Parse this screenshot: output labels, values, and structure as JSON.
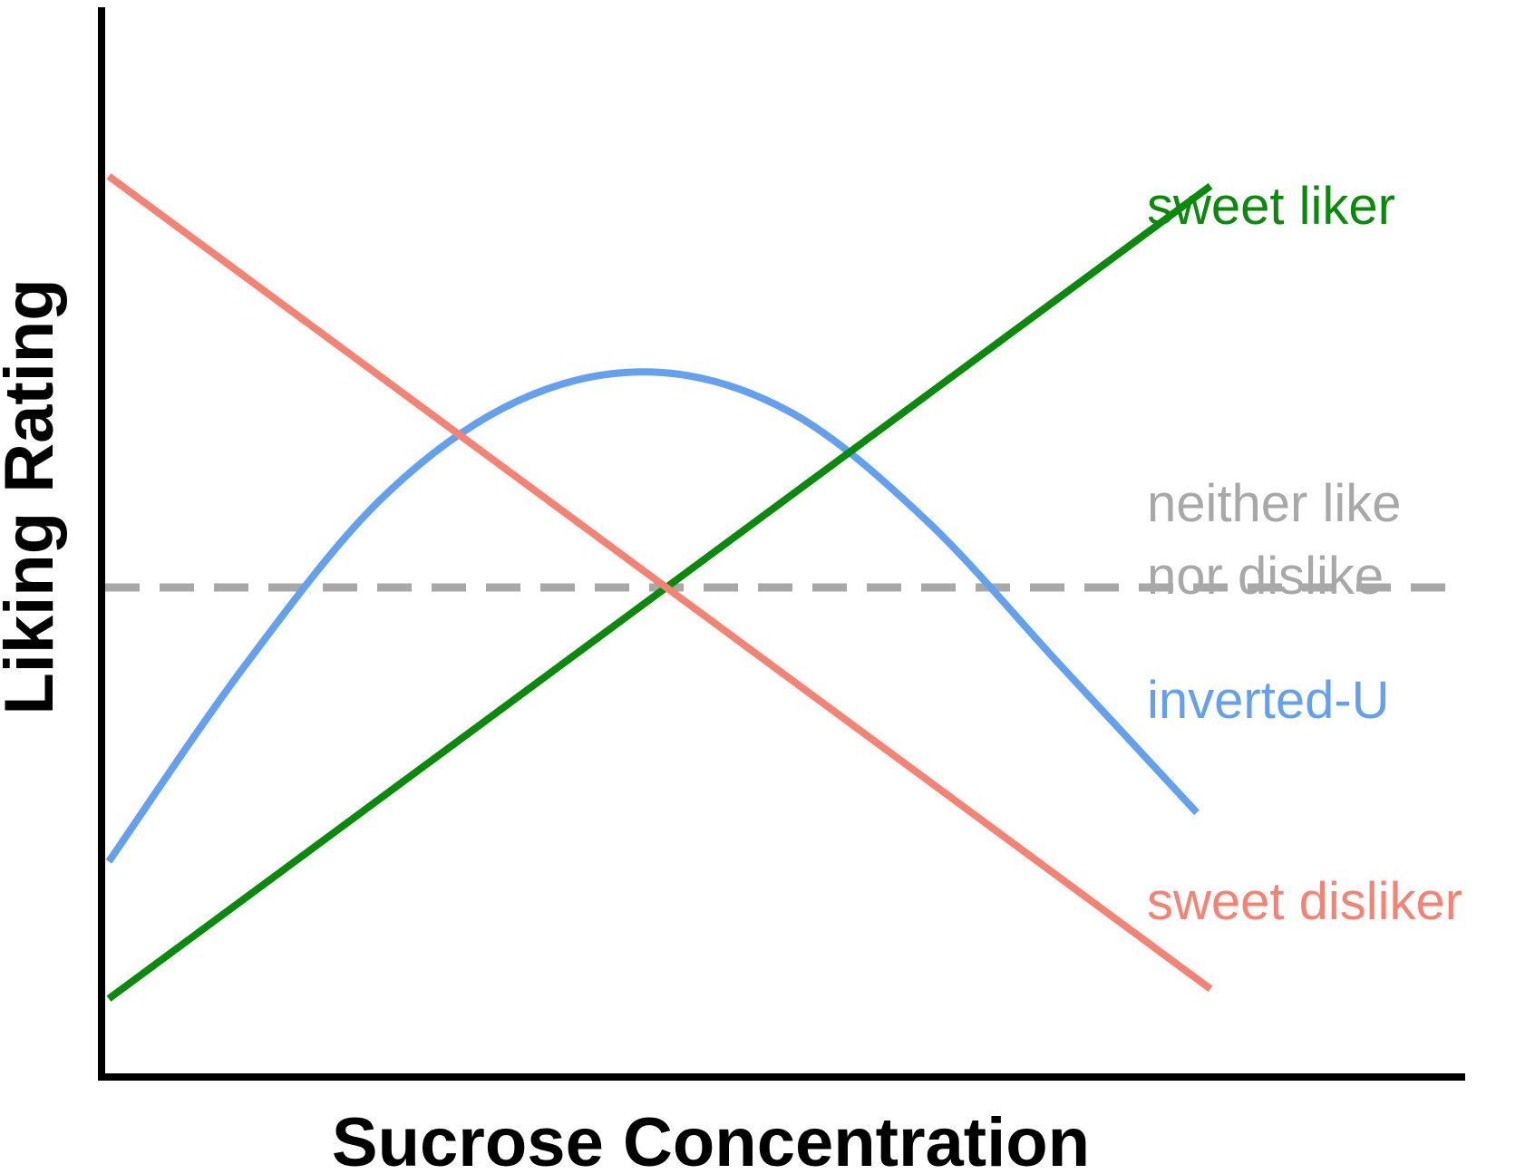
{
  "chart_data": {
    "type": "line",
    "title": "",
    "xlabel": "Sucrose Concentration",
    "ylabel": "Liking Rating",
    "xlim": [
      0,
      1
    ],
    "ylim": [
      0,
      1
    ],
    "grid": false,
    "legend": "none",
    "reference_line": {
      "y": 0.5,
      "label_lines": [
        "neither like",
        "nor dislike"
      ],
      "color": "#a8a8a8",
      "style": "dashed"
    },
    "series": [
      {
        "name": "sweet liker",
        "color": "#0a8a0a",
        "x": [
          0.0,
          0.81
        ],
        "y": [
          0.08,
          0.91
        ]
      },
      {
        "name": "inverted-U",
        "color": "#64a0f0",
        "x": [
          0.0,
          0.1,
          0.2,
          0.3,
          0.4,
          0.5,
          0.6,
          0.7,
          0.8
        ],
        "y": [
          0.22,
          0.42,
          0.59,
          0.69,
          0.72,
          0.68,
          0.57,
          0.42,
          0.27
        ]
      },
      {
        "name": "sweet disliker",
        "color": "#f58273",
        "x": [
          0.0,
          0.81
        ],
        "y": [
          0.92,
          0.09
        ]
      }
    ]
  }
}
